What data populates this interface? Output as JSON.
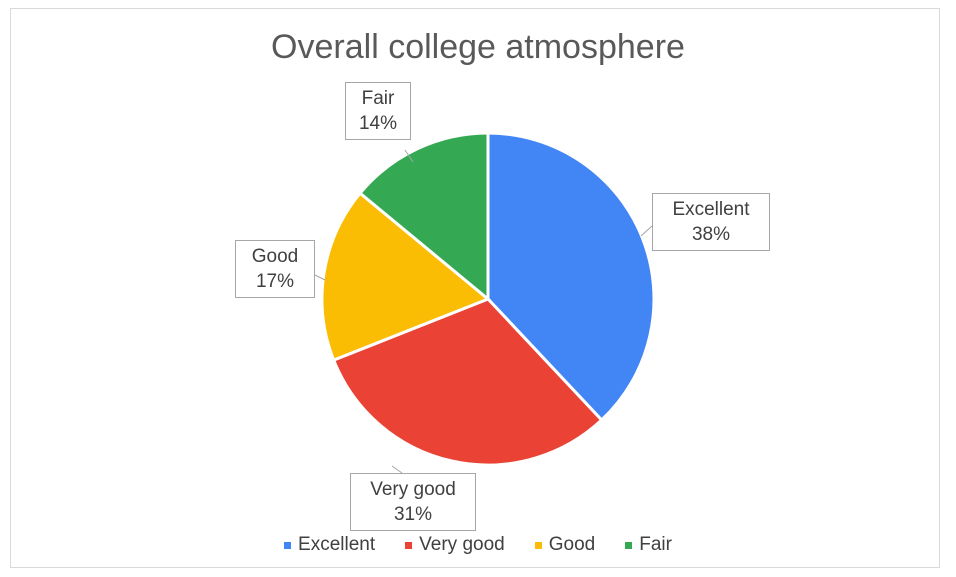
{
  "chart_data": {
    "type": "pie",
    "title": "Overall college atmosphere",
    "slices": [
      {
        "label": "Excellent",
        "value": 38,
        "display": "38%",
        "color": "#4285f4"
      },
      {
        "label": "Very good",
        "value": 31,
        "display": "31%",
        "color": "#ea4335"
      },
      {
        "label": "Good",
        "value": 17,
        "display": "17%",
        "color": "#fbbc04"
      },
      {
        "label": "Fair",
        "value": 14,
        "display": "14%",
        "color": "#34a853"
      }
    ],
    "legend_position": "bottom"
  }
}
